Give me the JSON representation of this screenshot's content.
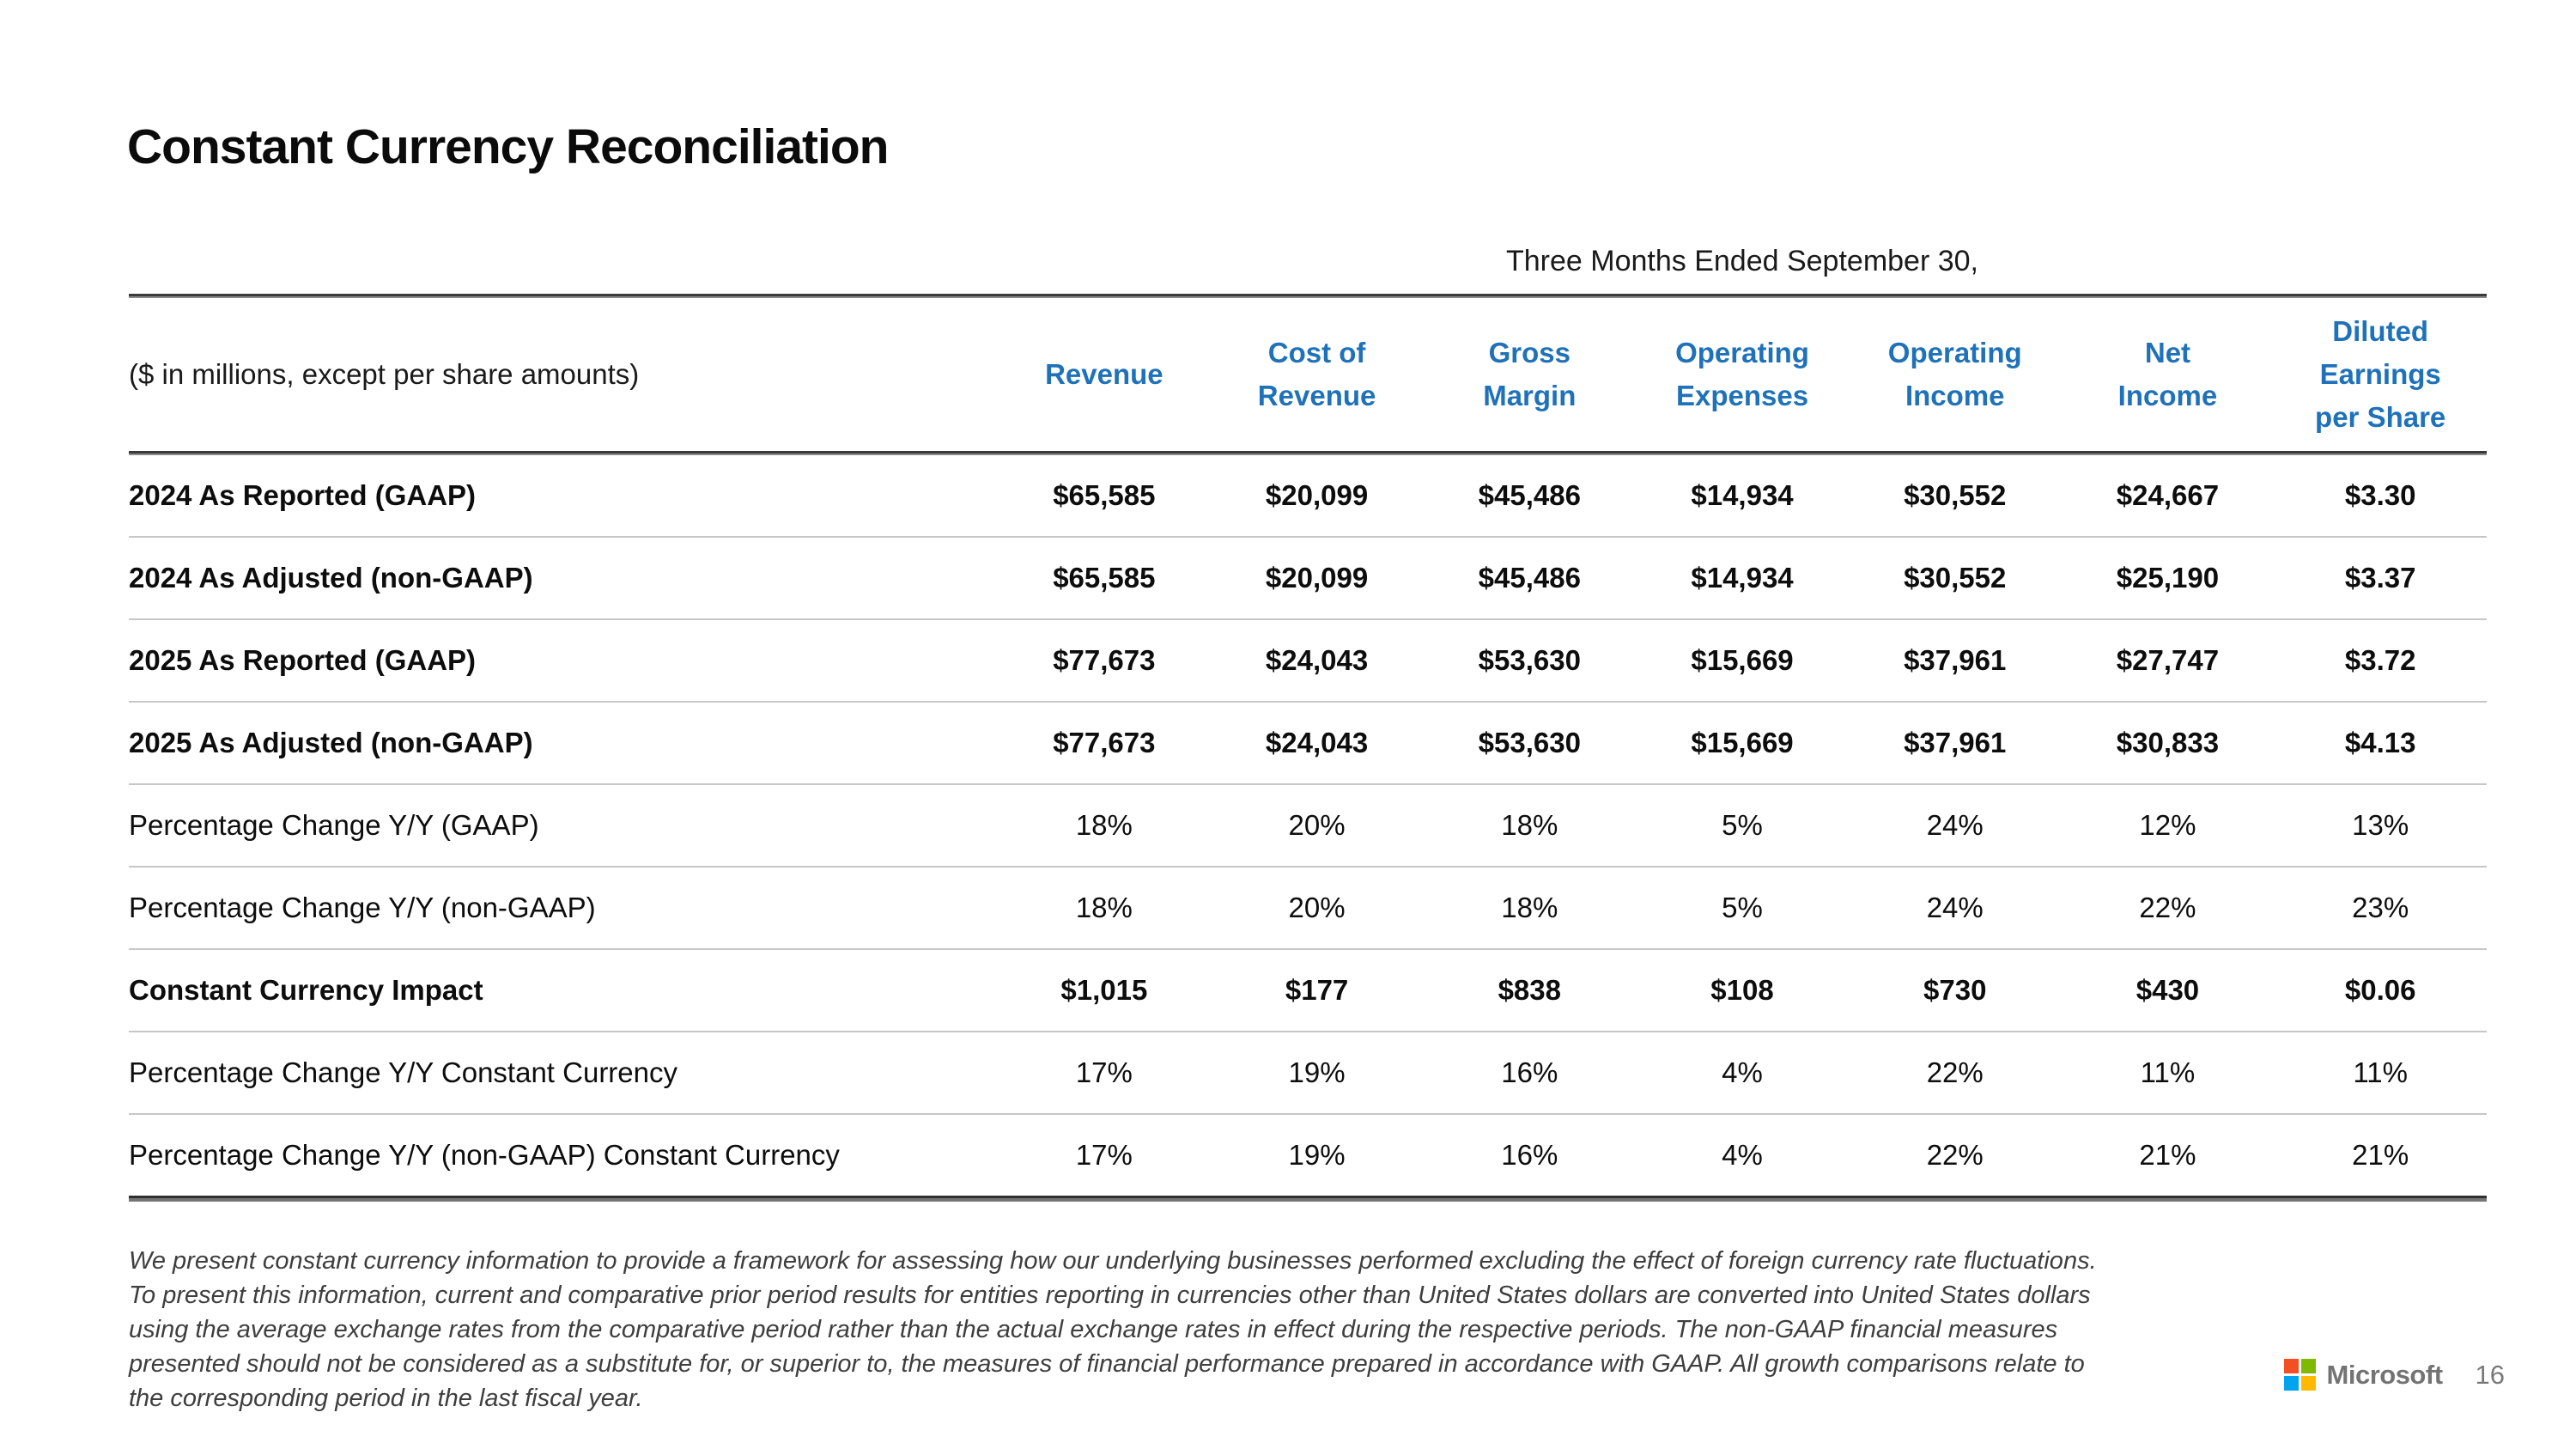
{
  "slide": {
    "title": "Constant Currency Reconciliation",
    "months_header": "Three Months Ended September 30,",
    "row_label_header": "($ in millions, except per share amounts)",
    "logo_text": "Microsoft",
    "page_number": "16"
  },
  "colors": {
    "header_blue": "#1f72b9",
    "logo_red": "#f25022",
    "logo_green": "#7fba00",
    "logo_blue": "#00a4ef",
    "logo_yellow": "#ffb900"
  },
  "columns": [
    "Revenue",
    "Cost of\nRevenue",
    "Gross\nMargin",
    "Operating\nExpenses",
    "Operating\nIncome",
    "Net\nIncome",
    "Diluted\nEarnings\nper Share"
  ],
  "rows": [
    {
      "label": "2024 As Reported (GAAP)",
      "bold": true,
      "values": [
        "$65,585",
        "$20,099",
        "$45,486",
        "$14,934",
        "$30,552",
        "$24,667",
        "$3.30"
      ]
    },
    {
      "label": "2024 As Adjusted (non-GAAP)",
      "bold": true,
      "values": [
        "$65,585",
        "$20,099",
        "$45,486",
        "$14,934",
        "$30,552",
        "$25,190",
        "$3.37"
      ]
    },
    {
      "label": "2025 As Reported (GAAP)",
      "bold": true,
      "values": [
        "$77,673",
        "$24,043",
        "$53,630",
        "$15,669",
        "$37,961",
        "$27,747",
        "$3.72"
      ]
    },
    {
      "label": "2025 As Adjusted (non-GAAP)",
      "bold": true,
      "values": [
        "$77,673",
        "$24,043",
        "$53,630",
        "$15,669",
        "$37,961",
        "$30,833",
        "$4.13"
      ]
    },
    {
      "label": "Percentage Change Y/Y (GAAP)",
      "bold": false,
      "values": [
        "18%",
        "20%",
        "18%",
        "5%",
        "24%",
        "12%",
        "13%"
      ]
    },
    {
      "label": "Percentage Change Y/Y (non-GAAP)",
      "bold": false,
      "values": [
        "18%",
        "20%",
        "18%",
        "5%",
        "24%",
        "22%",
        "23%"
      ]
    },
    {
      "label": "Constant Currency Impact",
      "bold": true,
      "values": [
        "$1,015",
        "$177",
        "$838",
        "$108",
        "$730",
        "$430",
        "$0.06"
      ]
    },
    {
      "label": "Percentage Change Y/Y Constant Currency",
      "bold": false,
      "values": [
        "17%",
        "19%",
        "16%",
        "4%",
        "22%",
        "11%",
        "11%"
      ]
    },
    {
      "label": "Percentage Change Y/Y (non-GAAP) Constant Currency",
      "bold": false,
      "values": [
        "17%",
        "19%",
        "16%",
        "4%",
        "22%",
        "21%",
        "21%"
      ]
    }
  ],
  "footnote": "We present constant currency information to provide a framework for assessing how our underlying businesses performed excluding the effect of foreign currency rate fluctuations.\nTo present this information, current and comparative prior period results for entities reporting in currencies other than United States dollars are converted into United States dollars\nusing the average exchange rates from the comparative period rather than the actual exchange rates in effect during the respective periods. The non-GAAP financial measures\npresented should not be considered as a substitute for, or superior to, the measures of financial performance prepared in accordance with GAAP. All growth comparisons relate to\nthe corresponding period in the last fiscal year."
}
